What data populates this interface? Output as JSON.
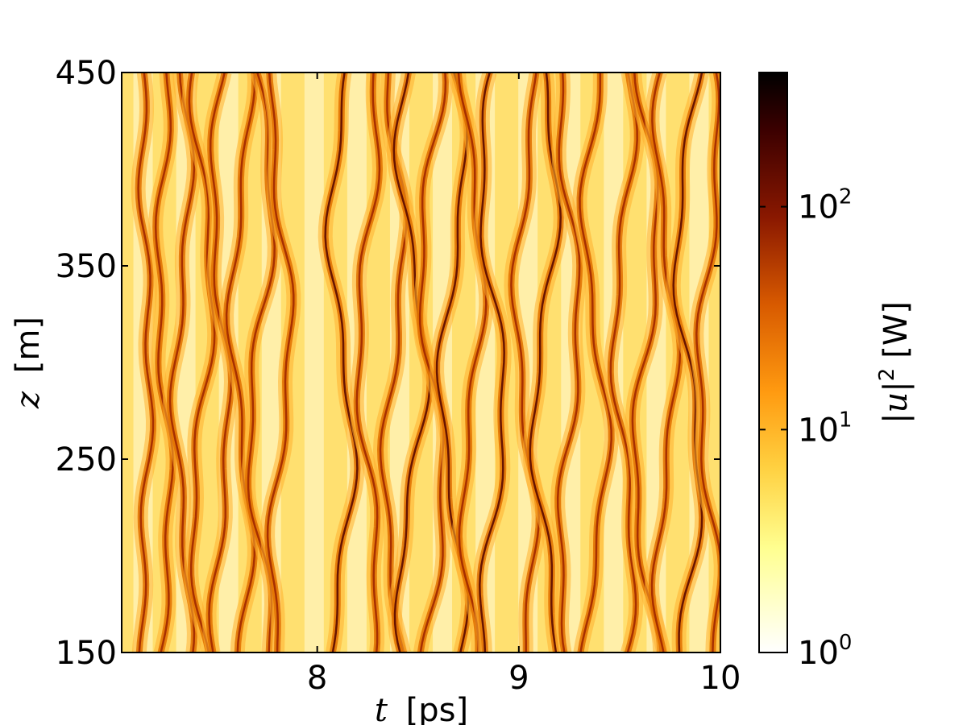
{
  "chart_data": {
    "type": "heatmap",
    "title": "",
    "xlabel": {
      "var": "t",
      "unit": "[ps]"
    },
    "ylabel": {
      "var": "z",
      "unit": "[m]"
    },
    "xlim": [
      7.03,
      10.0
    ],
    "ylim": [
      150,
      450
    ],
    "x_ticks": [
      "8",
      "9",
      "10"
    ],
    "x_tick_values": [
      8,
      9,
      10
    ],
    "y_ticks": [
      "150",
      "250",
      "350",
      "450"
    ],
    "y_tick_values": [
      150,
      250,
      350,
      450
    ],
    "colorbar": {
      "label": {
        "var": "|u|",
        "exp": "2",
        "unit": "[W]"
      },
      "scale": "log",
      "range": [
        1,
        400
      ],
      "ticks": [
        {
          "base": "10",
          "exp": "0",
          "value": 1
        },
        {
          "base": "10",
          "exp": "1",
          "value": 10
        },
        {
          "base": "10",
          "exp": "2",
          "value": 100
        }
      ],
      "colormap": "afmhot_r",
      "colors": [
        "#ffffff",
        "#ffff90",
        "#ffd040",
        "#ff9a10",
        "#d85a00",
        "#8a1800",
        "#3c0000",
        "#000000"
      ]
    },
    "description_of_field": "intensity |u|^2 as function of time t and distance z showing many bright filament tracks that split and merge",
    "filaments": [
      {
        "t": 7.15,
        "amp": 12,
        "drift": 0.02
      },
      {
        "t": 7.24,
        "amp": 40,
        "drift": 0.03
      },
      {
        "t": 7.33,
        "amp": 30,
        "drift": 0.04
      },
      {
        "t": 7.43,
        "amp": 60,
        "drift": 0.05
      },
      {
        "t": 7.52,
        "amp": 35,
        "drift": 0.04
      },
      {
        "t": 7.62,
        "amp": 45,
        "drift": 0.05
      },
      {
        "t": 7.72,
        "amp": 60,
        "drift": 0.06
      },
      {
        "t": 7.82,
        "amp": 40,
        "drift": 0.05
      },
      {
        "t": 8.12,
        "amp": 70,
        "drift": 0.06
      },
      {
        "t": 8.25,
        "amp": 40,
        "drift": 0.05
      },
      {
        "t": 8.38,
        "amp": 50,
        "drift": 0.05
      },
      {
        "t": 8.47,
        "amp": 90,
        "drift": 0.07
      },
      {
        "t": 8.57,
        "amp": 50,
        "drift": 0.06
      },
      {
        "t": 8.67,
        "amp": 70,
        "drift": 0.06
      },
      {
        "t": 8.77,
        "amp": 50,
        "drift": 0.05
      },
      {
        "t": 8.87,
        "amp": 80,
        "drift": 0.06
      },
      {
        "t": 9.03,
        "amp": 50,
        "drift": 0.05
      },
      {
        "t": 9.13,
        "amp": 70,
        "drift": 0.06
      },
      {
        "t": 9.25,
        "amp": 45,
        "drift": 0.05
      },
      {
        "t": 9.38,
        "amp": 60,
        "drift": 0.06
      },
      {
        "t": 9.52,
        "amp": 40,
        "drift": 0.05
      },
      {
        "t": 9.63,
        "amp": 60,
        "drift": 0.06
      },
      {
        "t": 9.73,
        "amp": 50,
        "drift": 0.05
      },
      {
        "t": 9.84,
        "amp": 80,
        "drift": 0.06
      },
      {
        "t": 9.94,
        "amp": 40,
        "drift": 0.05
      }
    ]
  }
}
